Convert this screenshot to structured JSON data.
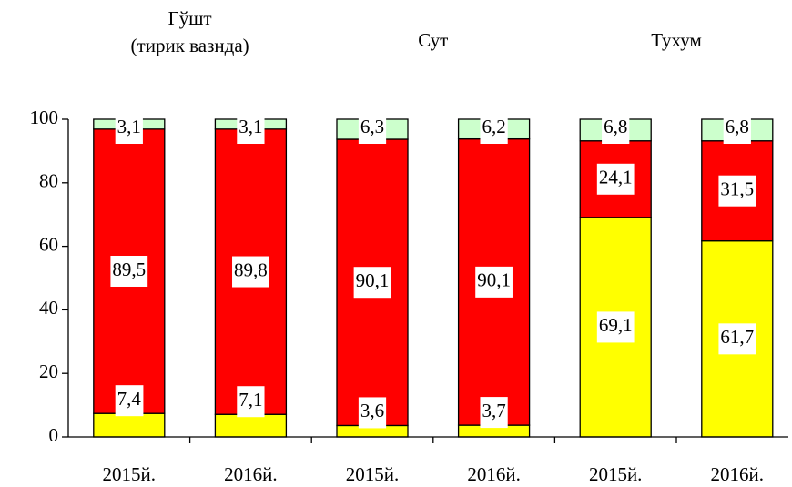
{
  "chart_data": {
    "type": "stacked-bar",
    "group_labels": [
      [
        "Гўшт",
        "(тирик вазнда)"
      ],
      [
        "Сут"
      ],
      [
        "Тухум"
      ]
    ],
    "categories": [
      "2015й.",
      "2016й.",
      "2015й.",
      "2016й.",
      "2015й.",
      "2016й."
    ],
    "series": [
      {
        "color": "#ffff00",
        "values": [
          7.4,
          7.1,
          3.6,
          3.7,
          69.1,
          61.7
        ],
        "value_labels": [
          "7,4",
          "7,1",
          "3,6",
          "3,7",
          "69,1",
          "61,7"
        ]
      },
      {
        "color": "#ff0000",
        "values": [
          89.5,
          89.8,
          90.1,
          90.1,
          24.1,
          31.5
        ],
        "value_labels": [
          "89,5",
          "89,8",
          "90,1",
          "90,1",
          "24,1",
          "31,5"
        ]
      },
      {
        "color": "#ccffcc",
        "values": [
          3.1,
          3.1,
          6.3,
          6.2,
          6.8,
          6.8
        ],
        "value_labels": [
          "3,1",
          "3,1",
          "6,3",
          "6,2",
          "6,8",
          "6,8"
        ]
      }
    ],
    "ylim": [
      0,
      100
    ],
    "yticks": [
      0,
      20,
      40,
      60,
      80,
      100
    ],
    "grid": false
  }
}
